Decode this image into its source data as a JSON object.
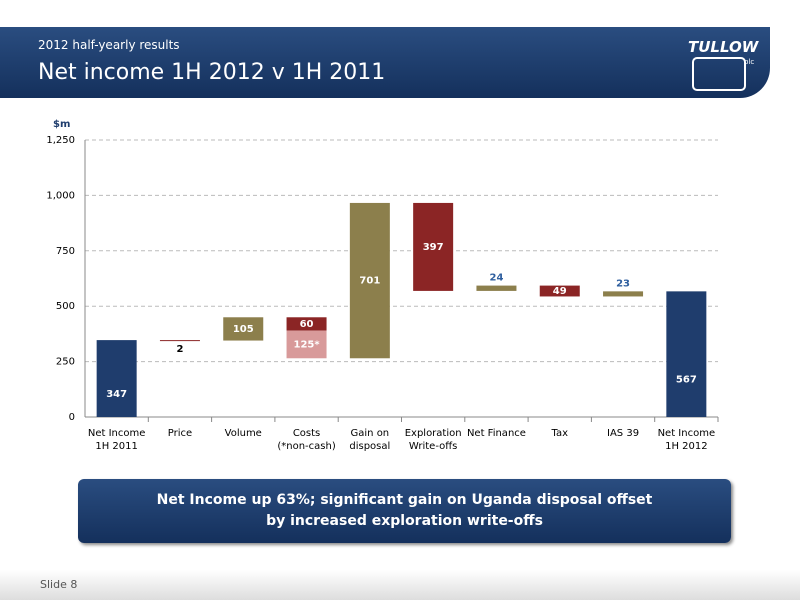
{
  "header": {
    "subtitle": "2012 half-yearly results",
    "title": "Net income 1H 2012 v 1H 2011",
    "logo": "TULLOW",
    "logo_suffix": "plc"
  },
  "chart_data": {
    "type": "waterfall",
    "y_label": "$m",
    "categories": [
      "Net Income\n1H 2011",
      "Price",
      "Volume",
      "Costs\n(*non-cash)",
      "Gain on\ndisposal",
      "Exploration\nWrite-offs",
      "Net Finance",
      "Tax",
      "IAS 39",
      "Net Income\n1H 2012"
    ],
    "bars": [
      {
        "segments": [
          {
            "value": 347,
            "color": "#1f3d6d",
            "total": true
          }
        ]
      },
      {
        "segments": [
          {
            "value": -2,
            "value_label": "2",
            "color": "#8b2525"
          }
        ]
      },
      {
        "segments": [
          {
            "value": 105,
            "color": "#8c7f4c"
          }
        ]
      },
      {
        "segments": [
          {
            "value": -60,
            "value_label": "60",
            "color": "#8b2525"
          },
          {
            "value": -125,
            "value_label": "125*",
            "color": "#d89a9a"
          }
        ]
      },
      {
        "segments": [
          {
            "value": 701,
            "color": "#8c7f4c"
          }
        ]
      },
      {
        "segments": [
          {
            "value": -397,
            "value_label": "397",
            "color": "#8b2525"
          }
        ]
      },
      {
        "segments": [
          {
            "value": 24,
            "color": "#8c7f4c"
          }
        ]
      },
      {
        "segments": [
          {
            "value": -49,
            "value_label": "49",
            "color": "#8b2525"
          }
        ]
      },
      {
        "segments": [
          {
            "value": 23,
            "color": "#8c7f4c"
          }
        ]
      },
      {
        "segments": [
          {
            "value": 567,
            "color": "#1f3d6d",
            "total": true
          }
        ]
      }
    ],
    "ylim": [
      0,
      1250
    ],
    "yticks": [
      0,
      250,
      500,
      750,
      {
        "value": 1000,
        "label": "1,000"
      },
      {
        "value": 1250,
        "label": "1,250"
      }
    ],
    "grid": true
  },
  "callout": {
    "lines": [
      "Net Income up 63%; significant gain on Uganda disposal offset",
      "by increased exploration write-offs"
    ]
  },
  "footer": {
    "slide": "Slide 8"
  }
}
